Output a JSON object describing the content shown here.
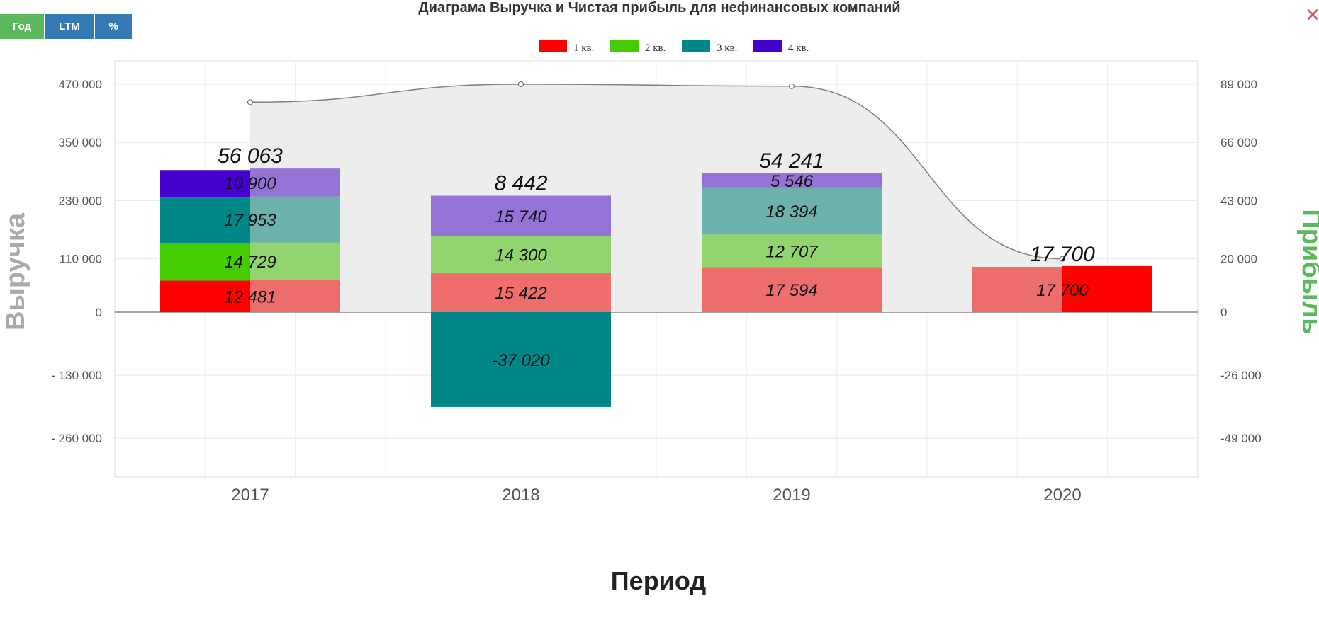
{
  "toolbar": {
    "buttons": [
      {
        "label": "Год",
        "color": "#5cb85c",
        "active": true
      },
      {
        "label": "LTM",
        "color": "#337ab7",
        "active": false
      },
      {
        "label": "%",
        "color": "#337ab7",
        "active": false
      }
    ]
  },
  "close_icon": "close-icon",
  "close_glyph": "✕",
  "chart_data": {
    "type": "bar",
    "title": "Диаграма Выручка и Чистая прибыль для нефинансовых компаний",
    "xlabel": "Период",
    "ylabel": "Выручка",
    "y2label": "Прибыль",
    "categories": [
      "2017",
      "2018",
      "2019",
      "2020"
    ],
    "legend_placement": "top",
    "grid": true,
    "ylim": [
      -350000,
      520000
    ],
    "y_ticks": [
      470000,
      350000,
      230000,
      110000,
      0,
      -130000,
      -260000
    ],
    "y_tick_labels": [
      "470 000",
      "350 000",
      "230 000",
      "110 000",
      "0",
      "- 130 000",
      "- 260 000"
    ],
    "y2_tick_labels": [
      "89 000",
      "66 000",
      "43 000",
      "20 000",
      "0",
      "-26 000",
      "-49 000"
    ],
    "revenue_line": {
      "name": "Выручка",
      "values": [
        433000,
        470000,
        466000,
        110000
      ],
      "color": "#808080",
      "area_fill": "#ededed"
    },
    "revenue_series": [
      {
        "name": "1 кв.",
        "color": "#ff0000",
        "values": [
          65000,
          null,
          null,
          95000
        ]
      },
      {
        "name": "2 кв.",
        "color": "#44cc00",
        "values": [
          77000,
          null,
          null,
          null
        ]
      },
      {
        "name": "3 кв.",
        "color": "#008888",
        "values": [
          94000,
          null,
          null,
          null
        ]
      },
      {
        "name": "4 кв.",
        "color": "#4400cc",
        "values": [
          57000,
          null,
          null,
          null
        ]
      }
    ],
    "profit_series": [
      {
        "name": "1 кв.",
        "color": "#ee6e6e",
        "values": [
          12481,
          15422,
          17594,
          17700
        ],
        "labels": [
          "12 481",
          "15 422",
          "17 594",
          "17 700"
        ]
      },
      {
        "name": "2 кв.",
        "color": "#92d46e",
        "values": [
          14729,
          14300,
          12707,
          null
        ],
        "labels": [
          "14 729",
          "14 300",
          "12 707",
          ""
        ]
      },
      {
        "name": "3 кв.",
        "color": "#6db1ad",
        "values": [
          17953,
          -37020,
          18394,
          null
        ],
        "labels": [
          "17 953",
          "-37 020",
          "18 394",
          ""
        ]
      },
      {
        "name": "4 кв.",
        "color": "#9472d6",
        "values": [
          10900,
          15740,
          5546,
          null
        ],
        "labels": [
          "10 900",
          "15 740",
          "5 546",
          ""
        ]
      }
    ],
    "profit_neg_color": "#008888",
    "totals": [
      56063,
      8442,
      54241,
      17700
    ],
    "total_labels": [
      "56 063",
      "8 442",
      "54 241",
      "17 700"
    ]
  }
}
